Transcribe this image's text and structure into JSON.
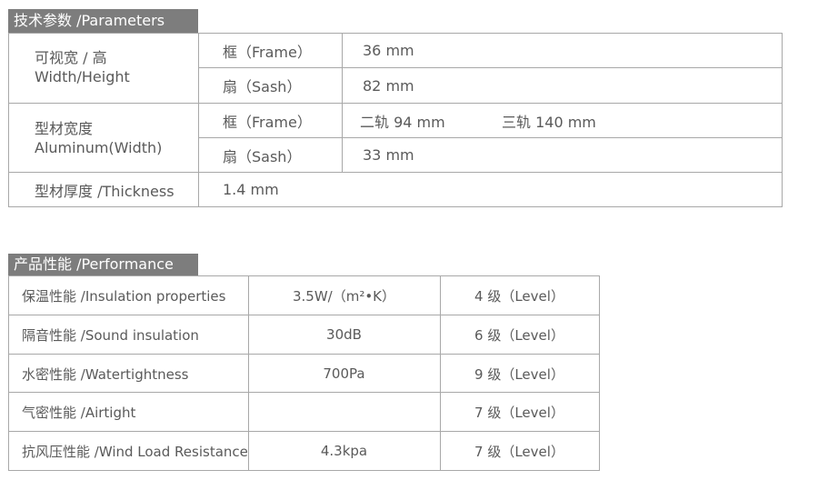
{
  "parameters": {
    "title": "技术参数 /Parameters",
    "rows": [
      {
        "label_cn": "可视宽 / 高",
        "label_en": "Width/Height",
        "sub": [
          {
            "part": "框（Frame）",
            "value": "36 mm"
          },
          {
            "part": "扇（Sash）",
            "value": "82 mm"
          }
        ]
      },
      {
        "label_cn": "型材宽度",
        "label_en": "Aluminum(Width)",
        "sub": [
          {
            "part": "框（Frame）",
            "value": "二轨 94 mm",
            "value2": "三轨 140 mm"
          },
          {
            "part": "扇（Sash）",
            "value": "33 mm"
          }
        ]
      },
      {
        "label": "型材厚度 /Thickness",
        "value": "1.4 mm"
      }
    ]
  },
  "performance": {
    "title": "产品性能 /Performance",
    "rows": [
      {
        "name": "保温性能 /Insulation properties",
        "value": "3.5W/（m²•K）",
        "level": "4 级（Level）"
      },
      {
        "name": "隔音性能 /Sound insulation",
        "value": "30dB",
        "level": "6 级（Level）"
      },
      {
        "name": "水密性能 /Watertightness",
        "value": "700Pa",
        "level": "9 级（Level）"
      },
      {
        "name": "气密性能 /Airtight",
        "value": "",
        "level": "7 级（Level）"
      },
      {
        "name": "抗风压性能 /Wind Load Resistance",
        "value": "4.3kpa",
        "level": "7 级（Level）"
      }
    ]
  }
}
